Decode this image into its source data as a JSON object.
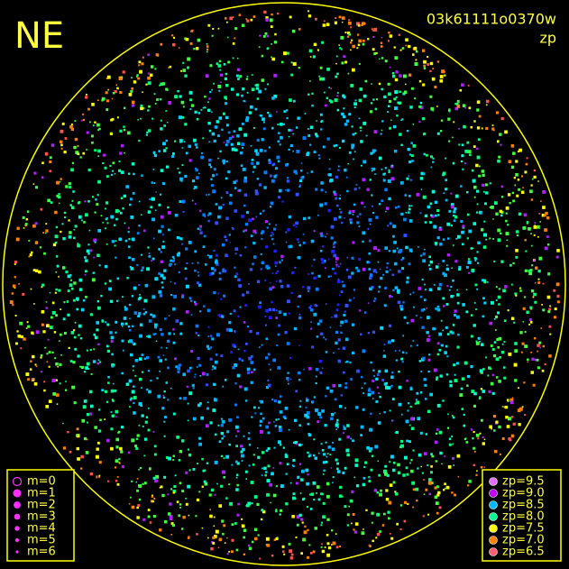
{
  "corner_label": "NE",
  "image_id": "03k61111o0370w",
  "mode": "zp",
  "magnitude_legend": [
    "m=0",
    "m=1",
    "m=2",
    "m=3",
    "m=4",
    "m=5",
    "m=6"
  ],
  "zp_legend": [
    {
      "label": "zp=9.5",
      "color": "#e070ff"
    },
    {
      "label": "zp=9.0",
      "color": "#c000ff"
    },
    {
      "label": "zp=8.5",
      "color": "#00b8ff"
    },
    {
      "label": "zp=8.0",
      "color": "#00ff90"
    },
    {
      "label": "zp=7.5",
      "color": "#ffff00"
    },
    {
      "label": "zp=7.0",
      "color": "#ff8000"
    },
    {
      "label": "zp=6.5",
      "color": "#ff6070"
    }
  ]
}
